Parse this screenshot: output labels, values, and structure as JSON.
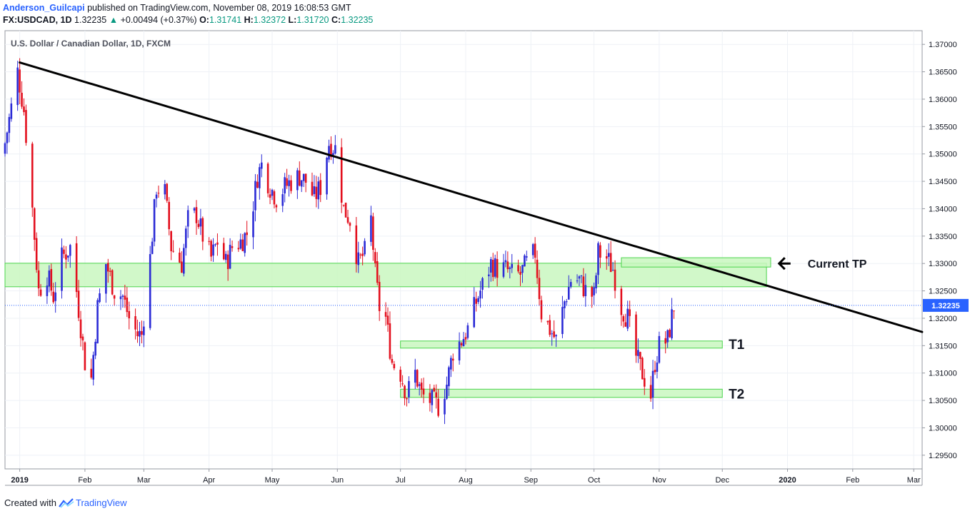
{
  "header": {
    "author": "Anderson_Guilcapi",
    "published": "published on TradingView.com, November 08, 2019 16:08:53 GMT",
    "symbol": "FX:USDCAD, 1D",
    "last": "1.32235",
    "change_arrow": "▲",
    "change": "+0.00494 (+0.37%)",
    "o_label": "O:",
    "o_value": "1.31741",
    "h_label": "H:",
    "h_value": "1.32372",
    "l_label": "L:",
    "l_value": "1.31720",
    "c_label": "C:",
    "c_value": "1.32235"
  },
  "footer": {
    "created_with": "Created with",
    "brand": "TradingView",
    "brand_icon": "tradingview-logo-icon"
  },
  "colors": {
    "up": "#2b2bd6",
    "down": "#e3101e",
    "zone_fill": "#c9f7c0",
    "zone_stroke": "#4cd44c",
    "trendline": "#000000",
    "grid": "#eef1f6",
    "price_tag": "#2962ff"
  },
  "chart_data": {
    "type": "candlestick",
    "title": "U.S. Dollar / Canadian Dollar, 1D, FXCM",
    "y_axis": {
      "min": 1.2925,
      "max": 1.3725,
      "ticks": [
        "1.37000",
        "1.36500",
        "1.36000",
        "1.35500",
        "1.35000",
        "1.34500",
        "1.34000",
        "1.33500",
        "1.33000",
        "1.32500",
        "1.32000",
        "1.31500",
        "1.31000",
        "1.30500",
        "1.30000",
        "1.29500"
      ]
    },
    "x_axis": {
      "start": "2018-12-25",
      "end": "2020-03-05",
      "labels": [
        {
          "date": "2019-01-01",
          "label": "2019",
          "bold": true
        },
        {
          "date": "2019-02-01",
          "label": "Feb"
        },
        {
          "date": "2019-03-01",
          "label": "Mar"
        },
        {
          "date": "2019-04-01",
          "label": "Apr"
        },
        {
          "date": "2019-05-01",
          "label": "May"
        },
        {
          "date": "2019-06-01",
          "label": "Jun"
        },
        {
          "date": "2019-07-01",
          "label": "Jul"
        },
        {
          "date": "2019-08-01",
          "label": "Aug"
        },
        {
          "date": "2019-09-01",
          "label": "Sep"
        },
        {
          "date": "2019-10-01",
          "label": "Oct"
        },
        {
          "date": "2019-11-01",
          "label": "Nov"
        },
        {
          "date": "2019-12-01",
          "label": "Dec"
        },
        {
          "date": "2020-01-01",
          "label": "2020",
          "bold": true
        },
        {
          "date": "2020-02-01",
          "label": "Feb"
        },
        {
          "date": "2020-03-01",
          "label": "Mar"
        }
      ]
    },
    "price_series": [
      [
        "2018-12-25",
        1.352
      ],
      [
        "2018-12-31",
        1.365
      ],
      [
        "2019-01-03",
        1.358
      ],
      [
        "2019-01-07",
        1.34
      ],
      [
        "2019-01-10",
        1.325
      ],
      [
        "2019-01-14",
        1.328
      ],
      [
        "2019-01-17",
        1.324
      ],
      [
        "2019-01-21",
        1.331
      ],
      [
        "2019-01-25",
        1.333
      ],
      [
        "2019-01-28",
        1.325
      ],
      [
        "2019-02-01",
        1.312
      ],
      [
        "2019-02-04",
        1.309
      ],
      [
        "2019-02-07",
        1.322
      ],
      [
        "2019-02-11",
        1.33
      ],
      [
        "2019-02-15",
        1.325
      ],
      [
        "2019-02-19",
        1.324
      ],
      [
        "2019-02-22",
        1.32
      ],
      [
        "2019-02-26",
        1.317
      ],
      [
        "2019-02-28",
        1.317
      ],
      [
        "2019-03-04",
        1.331
      ],
      [
        "2019-03-07",
        1.344
      ],
      [
        "2019-03-11",
        1.343
      ],
      [
        "2019-03-14",
        1.333
      ],
      [
        "2019-03-19",
        1.33
      ],
      [
        "2019-03-22",
        1.338
      ],
      [
        "2019-03-26",
        1.339
      ],
      [
        "2019-03-29",
        1.335
      ],
      [
        "2019-04-02",
        1.331
      ],
      [
        "2019-04-05",
        1.334
      ],
      [
        "2019-04-09",
        1.33
      ],
      [
        "2019-04-12",
        1.333
      ],
      [
        "2019-04-16",
        1.334
      ],
      [
        "2019-04-20",
        1.336
      ],
      [
        "2019-04-24",
        1.346
      ],
      [
        "2019-04-26",
        1.348
      ],
      [
        "2019-04-30",
        1.344
      ],
      [
        "2019-05-03",
        1.342
      ],
      [
        "2019-05-07",
        1.344
      ],
      [
        "2019-05-10",
        1.345
      ],
      [
        "2019-05-14",
        1.346
      ],
      [
        "2019-05-17",
        1.345
      ],
      [
        "2019-05-21",
        1.342
      ],
      [
        "2019-05-24",
        1.344
      ],
      [
        "2019-05-28",
        1.352
      ],
      [
        "2019-05-31",
        1.351
      ],
      [
        "2019-06-04",
        1.34
      ],
      [
        "2019-06-07",
        1.338
      ],
      [
        "2019-06-11",
        1.33
      ],
      [
        "2019-06-14",
        1.332
      ],
      [
        "2019-06-17",
        1.338
      ],
      [
        "2019-06-19",
        1.328
      ],
      [
        "2019-06-21",
        1.322
      ],
      [
        "2019-06-24",
        1.32
      ],
      [
        "2019-06-27",
        1.312
      ],
      [
        "2019-07-01",
        1.31
      ],
      [
        "2019-07-04",
        1.306
      ],
      [
        "2019-07-08",
        1.31
      ],
      [
        "2019-07-11",
        1.306
      ],
      [
        "2019-07-15",
        1.305
      ],
      [
        "2019-07-19",
        1.304
      ],
      [
        "2019-07-23",
        1.308
      ],
      [
        "2019-07-26",
        1.314
      ],
      [
        "2019-07-30",
        1.316
      ],
      [
        "2019-08-02",
        1.318
      ],
      [
        "2019-08-06",
        1.323
      ],
      [
        "2019-08-09",
        1.326
      ],
      [
        "2019-08-13",
        1.33
      ],
      [
        "2019-08-16",
        1.329
      ],
      [
        "2019-08-20",
        1.329
      ],
      [
        "2019-08-23",
        1.328
      ],
      [
        "2019-08-27",
        1.328
      ],
      [
        "2019-08-30",
        1.33
      ],
      [
        "2019-09-03",
        1.332
      ],
      [
        "2019-09-06",
        1.321
      ],
      [
        "2019-09-10",
        1.318
      ],
      [
        "2019-09-13",
        1.316
      ],
      [
        "2019-09-17",
        1.323
      ],
      [
        "2019-09-20",
        1.327
      ],
      [
        "2019-09-24",
        1.327
      ],
      [
        "2019-09-27",
        1.325
      ],
      [
        "2019-10-01",
        1.324
      ],
      [
        "2019-10-03",
        1.332
      ],
      [
        "2019-10-07",
        1.331
      ],
      [
        "2019-10-10",
        1.329
      ],
      [
        "2019-10-14",
        1.322
      ],
      [
        "2019-10-17",
        1.32
      ],
      [
        "2019-10-21",
        1.313
      ],
      [
        "2019-10-24",
        1.31
      ],
      [
        "2019-10-28",
        1.306
      ],
      [
        "2019-10-30",
        1.312
      ],
      [
        "2019-11-01",
        1.315
      ],
      [
        "2019-11-05",
        1.316
      ],
      [
        "2019-11-08",
        1.3223
      ]
    ],
    "last_price": "1.32235",
    "trendline": {
      "from": [
        "2019-01-01",
        1.3667
      ],
      "to": [
        "2020-03-05",
        1.3175
      ]
    },
    "zones": [
      {
        "name": "big-zone",
        "from": "2018-12-25",
        "to": "2019-12-22",
        "low": 1.32575,
        "high": 1.33005
      },
      {
        "name": "current-tp-zone",
        "from": "2019-10-14",
        "to": "2019-12-24",
        "low": 1.32935,
        "high": 1.33105
      },
      {
        "name": "t1-zone",
        "from": "2019-07-01",
        "to": "2019-12-01",
        "low": 1.31455,
        "high": 1.31585
      },
      {
        "name": "t2-zone",
        "from": "2019-07-01",
        "to": "2019-12-01",
        "low": 1.30555,
        "high": 1.30705
      }
    ],
    "annotations": [
      {
        "text": "Current TP",
        "arrow": "left-arrow-icon",
        "date": "2019-12-28",
        "price": 1.33
      },
      {
        "text": "T1",
        "date": "2019-12-04",
        "price": 1.3152
      },
      {
        "text": "T2",
        "date": "2019-12-04",
        "price": 1.3061
      }
    ]
  }
}
